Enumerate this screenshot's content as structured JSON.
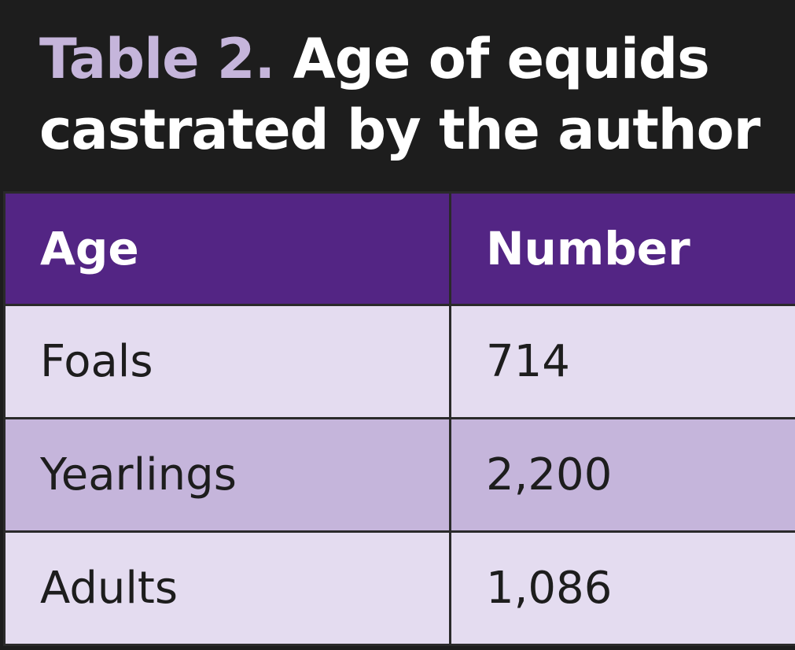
{
  "title": {
    "label": "Table 2.",
    "text": "Age of equids castrated by the author"
  },
  "table": {
    "headers": [
      "Age",
      "Number"
    ],
    "rows": [
      [
        "Foals",
        "714"
      ],
      [
        "Yearlings",
        "2,200"
      ],
      [
        "Adults",
        "1,086"
      ]
    ]
  },
  "colors": {
    "title_background": "#1d1d1d",
    "title_label": "#c5b5db",
    "header_background": "#532584",
    "row_light": "#e4dcf0",
    "row_dark": "#c5b5db"
  }
}
